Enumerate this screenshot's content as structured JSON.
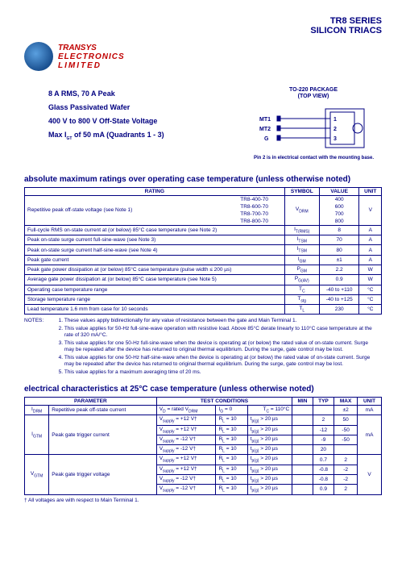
{
  "header": {
    "series": "TR8 SERIES",
    "product": "SILICON TRIACS"
  },
  "logo": {
    "line1": "TRANSYS",
    "line2": "ELECTRONICS",
    "line3": "LIMITED"
  },
  "specs": {
    "s1": "8 A RMS, 70 A Peak",
    "s2": "Glass Passivated Wafer",
    "s3": "400 V to 800 V Off-State Voltage",
    "s4_pre": "Max I",
    "s4_sub": "GT",
    "s4_post": " of 50 mA (Quadrants 1 - 3)"
  },
  "package": {
    "title1": "TO-220 PACKAGE",
    "title2": "(TOP VIEW)",
    "pin1_lbl": "MT1",
    "pin2_lbl": "MT2",
    "pin3_lbl": "G",
    "pin1_n": "1",
    "pin2_n": "2",
    "pin3_n": "3",
    "note": "Pin 2 is in electrical contact with the mounting base."
  },
  "sec1_title": "absolute maximum ratings    over operating case temperature (unless otherwise noted)",
  "t1": {
    "h_rating": "RATING",
    "h_symbol": "SYMBOL",
    "h_value": "VALUE",
    "h_unit": "UNIT",
    "r1_label": "Repetitive peak off-state voltage (see Note 1)",
    "r1_parts": [
      "TR8-400-70",
      "TR8-600-70",
      "TR8-700-70",
      "TR8-800-70"
    ],
    "r1_sym": "V",
    "r1_sym_sub": "DRM",
    "r1_vals": [
      "400",
      "600",
      "700",
      "800"
    ],
    "r1_unit": "V",
    "rows": [
      {
        "label": "Full-cycle RMS on-state current at (or below) 85°C case temperature (see Note 2)",
        "sym": "I",
        "sub": "T(RMS)",
        "val": "8",
        "unit": "A"
      },
      {
        "label": "Peak on-state surge current full-sine-wave (see Note 3)",
        "sym": "I",
        "sub": "TSM",
        "val": "70",
        "unit": "A"
      },
      {
        "label": "Peak on-state surge current half-sine-wave (see Note 4)",
        "sym": "I",
        "sub": "TSM",
        "val": "80",
        "unit": "A"
      },
      {
        "label": "Peak gate current",
        "sym": "I",
        "sub": "GM",
        "val": "±1",
        "unit": "A"
      },
      {
        "label": "Peak gate power dissipation at (or below) 85°C case temperature (pulse width ≤ 200 µs)",
        "sym": "P",
        "sub": "GM",
        "val": "2.2",
        "unit": "W"
      },
      {
        "label": "Average gate power dissipation at (or below) 85°C case temperature (see Note 5)",
        "sym": "P",
        "sub": "G(AV)",
        "val": "0.9",
        "unit": "W"
      },
      {
        "label": "Operating case temperature range",
        "sym": "T",
        "sub": "C",
        "val": "-40 to +110",
        "unit": "°C"
      },
      {
        "label": "Storage temperature range",
        "sym": "T",
        "sub": "stg",
        "val": "-40 to +125",
        "unit": "°C"
      },
      {
        "label": "Lead temperature 1.6 mm from case for 10 seconds",
        "sym": "T",
        "sub": "L",
        "val": "230",
        "unit": "°C"
      }
    ]
  },
  "notes": {
    "label": "NOTES:",
    "items": [
      "These values apply bidirectionally for any value of resistance between the gate and Main Terminal 1.",
      "This value applies for 50-Hz full-sine-wave operation with resistive load. Above 85°C derate linearly to 110°C case temperature at the rate of 320 mA/°C.",
      "This value applies for one 50-Hz full-sine-wave when the device is operating at (or below) the rated value of on-state current. Surge may be repeated after the device has returned to original thermal equilibrium. During the surge, gate control may be lost.",
      "This value applies for one 50-Hz half-sine-wave when the device is operating at (or below) the rated value of on-state current. Surge may be repeated after the device has returned to original thermal equilibrium. During the surge, gate control may be lost.",
      "This value applies for a maximum averaging time of 20 ms."
    ]
  },
  "sec2_title": "electrical characteristics at 25°C case temperature (unless otherwise noted)",
  "t2": {
    "h_param": "PARAMETER",
    "h_cond": "TEST CONDITIONS",
    "h_min": "MIN",
    "h_typ": "TYP",
    "h_max": "MAX",
    "h_unit": "UNIT",
    "r1": {
      "sym": "I",
      "sub": "DRM",
      "param": "Repetitive peak off-state current",
      "c1_pre": "V",
      "c1_sub": "D",
      "c1_post": " = rated V",
      "c1_sub2": "DRM",
      "c2_pre": "I",
      "c2_sub": "G",
      "c2_post": " = 0",
      "c3_pre": "T",
      "c3_sub": "C",
      "c3_post": " = 110°C",
      "min": "",
      "typ": "",
      "max": "±2",
      "unit": "mA"
    },
    "r2": {
      "sym": "I",
      "sub": "GTM",
      "param": "Peak gate trigger current",
      "rows": [
        {
          "v": "+12 V†",
          "r": "10",
          "t": "20",
          "min": "",
          "typ": "2",
          "max": "50"
        },
        {
          "v": "+12 V†",
          "r": "10",
          "t": "20",
          "min": "",
          "typ": "-12",
          "max": "-50"
        },
        {
          "v": "-12 V†",
          "r": "10",
          "t": "20",
          "min": "",
          "typ": "-9",
          "max": "-50"
        },
        {
          "v": "-12 V†",
          "r": "10",
          "t": "20",
          "min": "",
          "typ": "20",
          "max": ""
        }
      ],
      "unit": "mA"
    },
    "r3": {
      "sym": "V",
      "sub": "GTM",
      "param": "Peak gate trigger voltage",
      "rows": [
        {
          "v": "+12 V†",
          "r": "10",
          "t": "20",
          "min": "",
          "typ": "0.7",
          "max": "2"
        },
        {
          "v": "+12 V†",
          "r": "10",
          "t": "20",
          "min": "",
          "typ": "-0.8",
          "max": "-2"
        },
        {
          "v": "-12 V†",
          "r": "10",
          "t": "20",
          "min": "",
          "typ": "-0.8",
          "max": "-2"
        },
        {
          "v": "-12 V†",
          "r": "10",
          "t": "20",
          "min": "",
          "typ": "0.9",
          "max": "2"
        }
      ],
      "unit": "V"
    }
  },
  "footnote": "† All voltages are with respect to Main Terminal 1."
}
